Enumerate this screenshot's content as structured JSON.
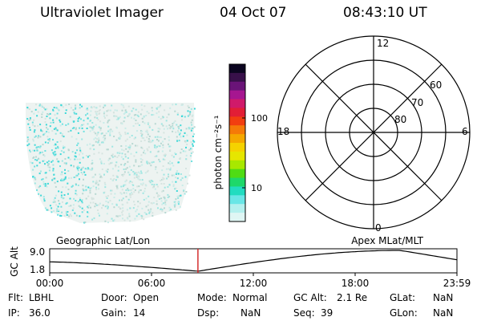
{
  "header": {
    "instrument": "Ultraviolet Imager",
    "date": "04 Oct 07",
    "time": "08:43:10 UT"
  },
  "colorbar": {
    "unit_label": "photon cm⁻²s⁻¹",
    "tick_100": "100",
    "tick_10": "10",
    "colors": [
      "#0b0520",
      "#38104a",
      "#6a1478",
      "#a61690",
      "#d01a6a",
      "#e21e36",
      "#f23e10",
      "#f57a08",
      "#f5a800",
      "#f5d200",
      "#e6e600",
      "#a8e800",
      "#4fdc14",
      "#1ed86a",
      "#22dcc0",
      "#6ae6e6",
      "#b4f0ee",
      "#dff6f4"
    ]
  },
  "polar": {
    "label_12": "12",
    "label_6": "6",
    "label_18": "18",
    "label_0": "0",
    "label_60": "60",
    "label_70": "70",
    "label_80": "80"
  },
  "coord_labels": {
    "left": "Geographic Lat/Lon",
    "right": "Apex MLat/MLT"
  },
  "altplot": {
    "axis_label": "GC Alt",
    "ymax": "9.0",
    "ymin": "1.8",
    "current_time_frac": 0.364,
    "xticks": [
      "00:00",
      "06:00",
      "12:00",
      "18:00",
      "23:59"
    ]
  },
  "info": {
    "flt_label": "Flt:",
    "flt_value": "LBHL",
    "ip_label": "IP:",
    "ip_value": "36.0",
    "door_label": "Door:",
    "door_value": "Open",
    "gain_label": "Gain:",
    "gain_value": "14",
    "mode_label": "Mode:",
    "mode_value": "Normal",
    "dsp_label": "Dsp:",
    "dsp_value": "NaN",
    "gcalt_label": "GC Alt:",
    "gcalt_value": "2.1 Re",
    "seq_label": "Seq:",
    "seq_value": "39",
    "glat_label": "GLat:",
    "glat_value": "NaN",
    "glon_label": "GLon:",
    "glon_value": "NaN"
  }
}
